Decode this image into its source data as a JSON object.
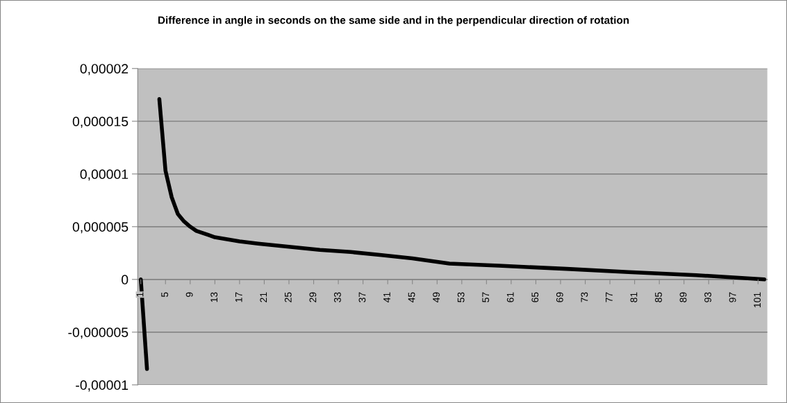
{
  "chart_data": {
    "type": "line",
    "title": "Difference in angle in seconds on the same side and in the perpendicular direction of rotation",
    "x": [
      1,
      2,
      3,
      4,
      5,
      6,
      7,
      8,
      9,
      10,
      11,
      12,
      13,
      15,
      17,
      20,
      25,
      30,
      35,
      40,
      45,
      51,
      59,
      70,
      80,
      91,
      102
    ],
    "series": [
      {
        "color": "#000000",
        "values": [
          0,
          -8.5e-06,
          null,
          1.71e-05,
          1.03e-05,
          7.8e-06,
          6.2e-06,
          5.5e-06,
          5e-06,
          4.6e-06,
          4.4e-06,
          4.2e-06,
          4e-06,
          3.8e-06,
          3.6e-06,
          3.4e-06,
          3.1e-06,
          2.8e-06,
          2.6e-06,
          2.3e-06,
          2e-06,
          1.5e-06,
          1.3e-06,
          1e-06,
          7e-07,
          4e-07,
          0
        ]
      }
    ],
    "xlim": [
      0.5,
      102.5
    ],
    "xticks": [
      1,
      5,
      9,
      13,
      17,
      21,
      25,
      29,
      33,
      37,
      41,
      45,
      49,
      53,
      57,
      61,
      65,
      69,
      73,
      77,
      81,
      85,
      89,
      93,
      97,
      101
    ],
    "ylim": [
      -1e-05,
      2e-05
    ],
    "yticks": [
      {
        "value": -1e-05,
        "label": "-0,00001"
      },
      {
        "value": -5e-06,
        "label": "-0,000005"
      },
      {
        "value": 0,
        "label": "0"
      },
      {
        "value": 5e-06,
        "label": "0,000005"
      },
      {
        "value": 1e-05,
        "label": "0,00001"
      },
      {
        "value": 1.5e-05,
        "label": "0,000015"
      },
      {
        "value": 2e-05,
        "label": "0,00002"
      }
    ],
    "grid": "y",
    "marker": "none",
    "line_style": "solid",
    "legend": false
  }
}
